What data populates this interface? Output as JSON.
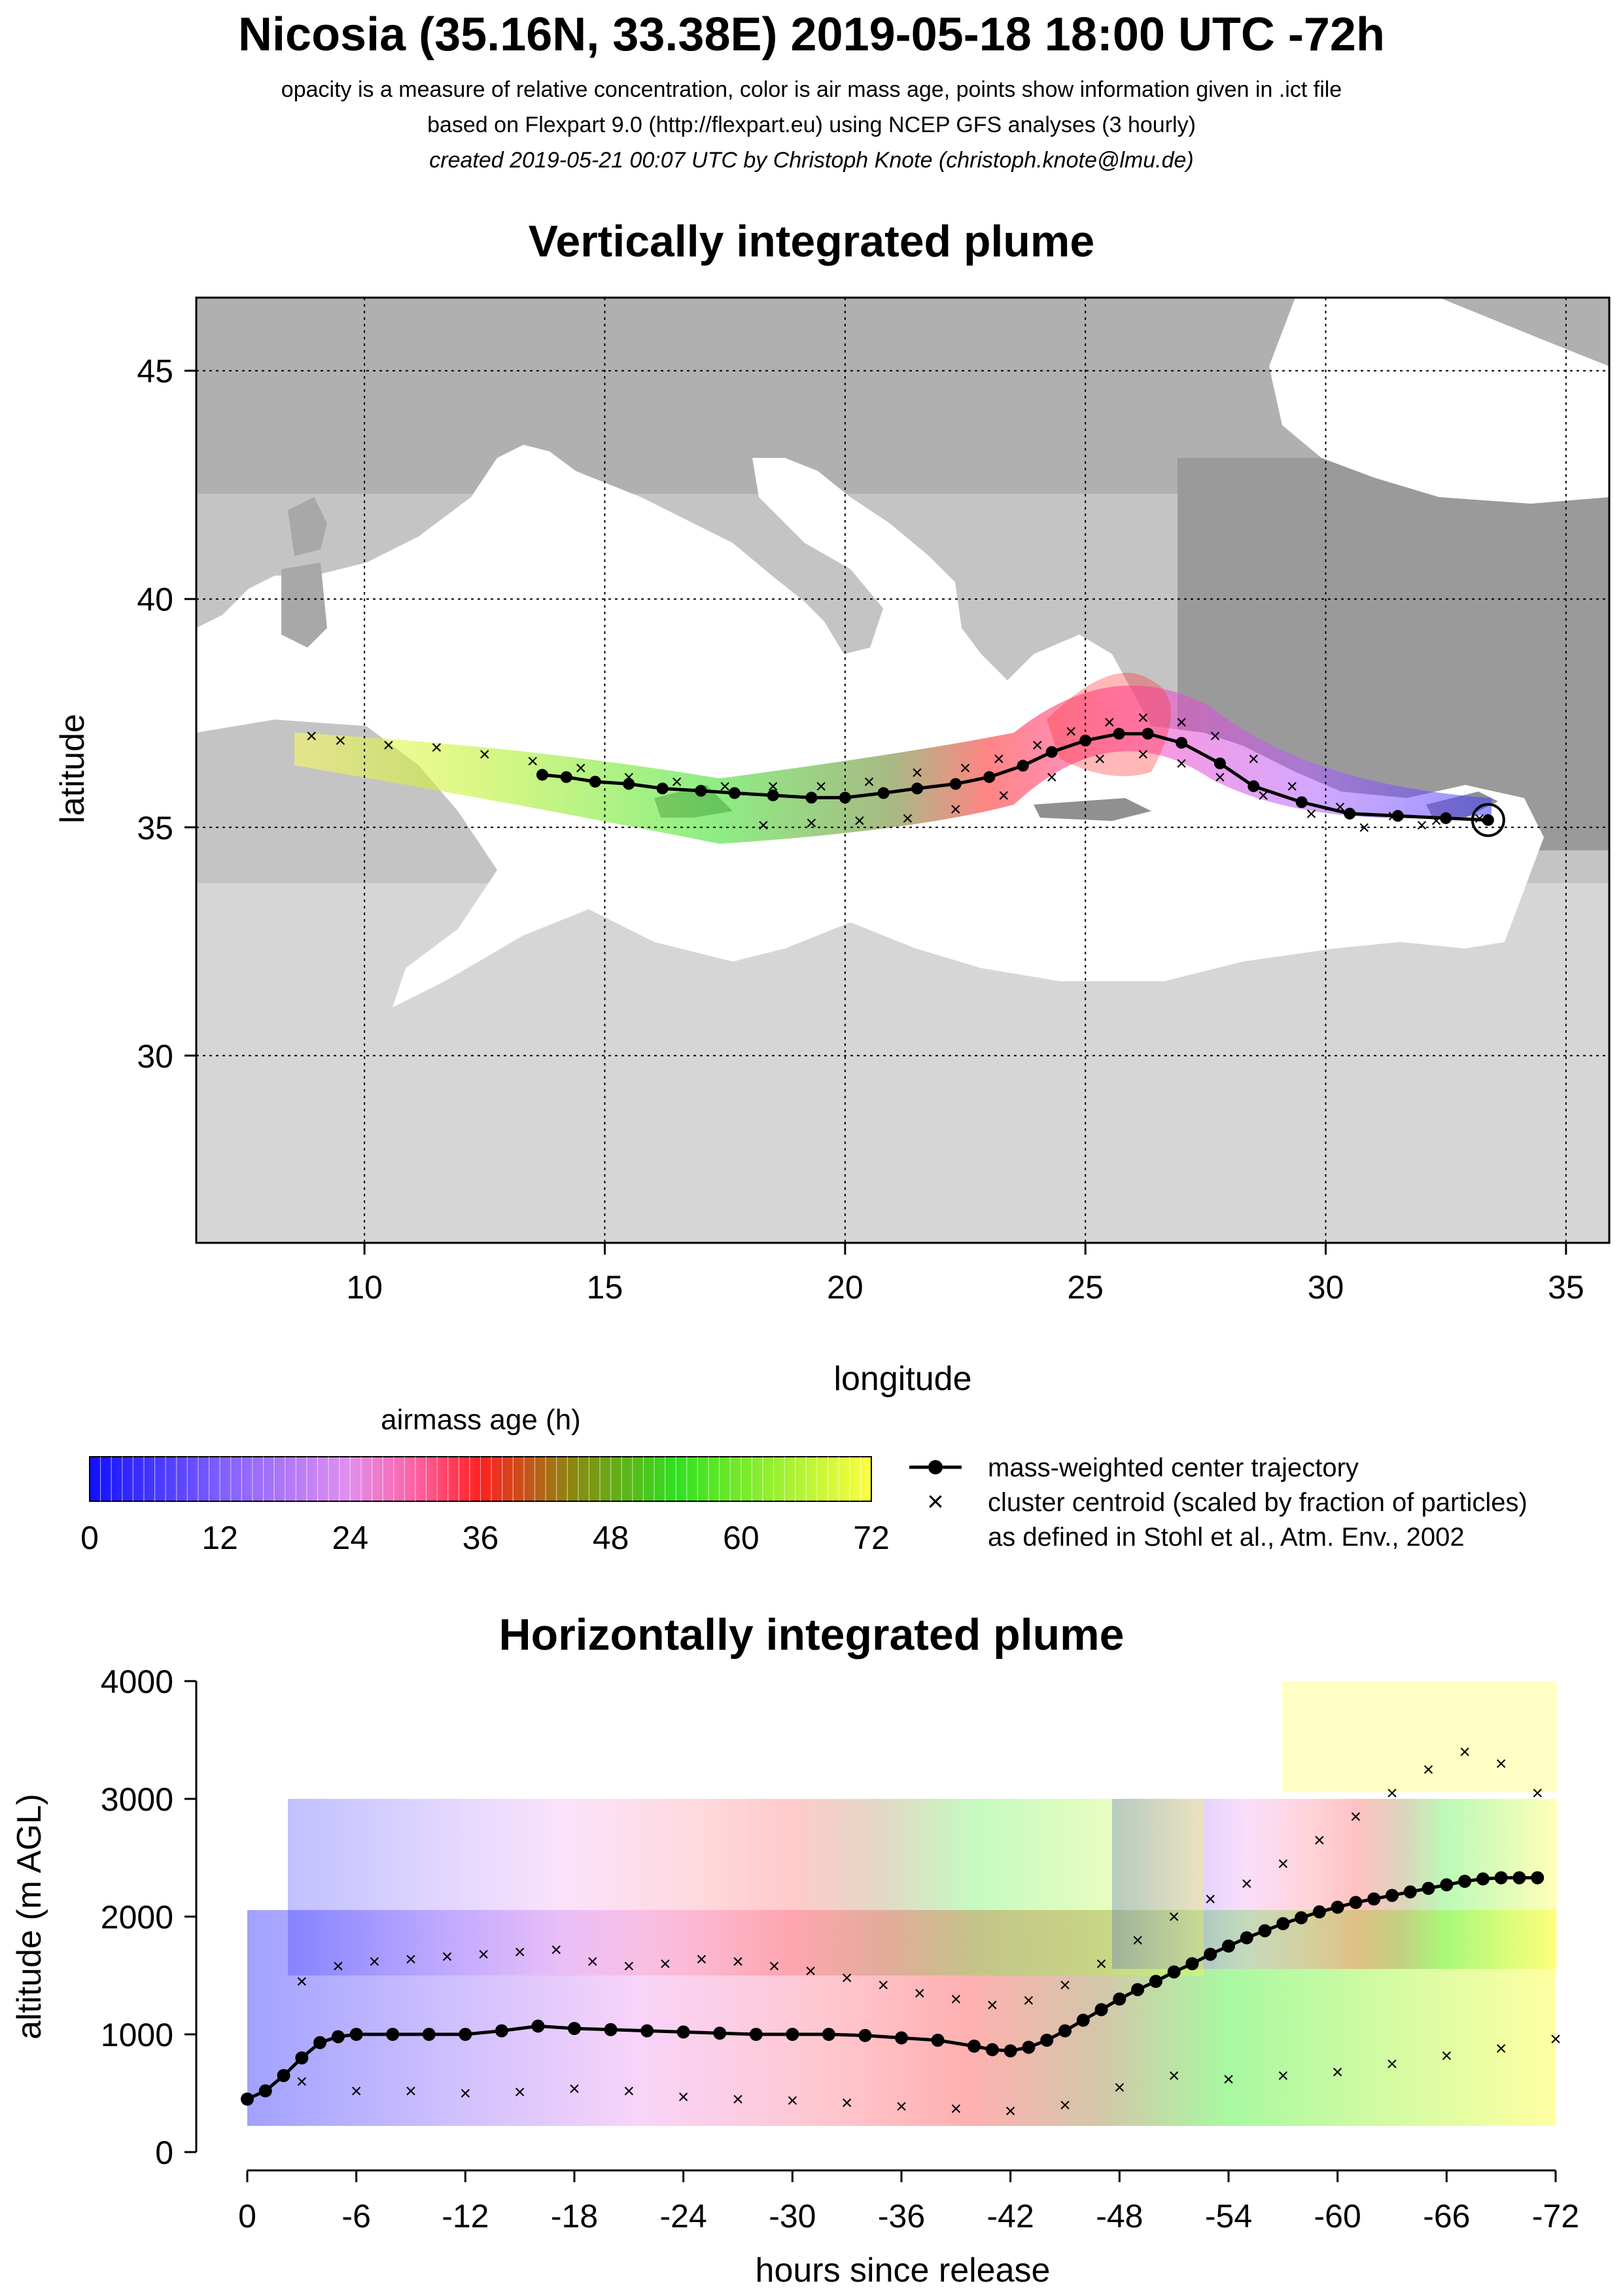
{
  "header": {
    "title": "Nicosia (35.16N, 33.38E) 2019-05-18 18:00 UTC -72h",
    "subtitle1": "opacity is a measure of relative concentration, color is air mass age, points show information given in .ict file",
    "subtitle2": "based on Flexpart 9.0 (http://flexpart.eu) using NCEP GFS analyses (3 hourly)",
    "subtitle3": "created 2019-05-21 00:07 UTC by Christoph Knote (christoph.knote@lmu.de)"
  },
  "colors": {
    "plot_bg_gray": "#c8c8c8",
    "sea": "#ffffff",
    "trajectory": "#000000"
  },
  "chart_data": [
    {
      "type": "scatter",
      "title": "Vertically integrated plume",
      "xlabel": "longitude",
      "ylabel": "latitude",
      "xlim": [
        6.5,
        35.9
      ],
      "ylim": [
        25.9,
        46.6
      ],
      "xticks": [
        10,
        15,
        20,
        25,
        30,
        35
      ],
      "yticks": [
        30,
        35,
        40,
        45
      ],
      "grid": true,
      "release_point": {
        "lon": 33.38,
        "lat": 35.16
      },
      "series": [
        {
          "name": "mass-weighted center trajectory",
          "x": [
            33.38,
            32.5,
            31.5,
            30.5,
            29.5,
            28.5,
            27.8,
            27.0,
            26.3,
            25.7,
            25.0,
            24.3,
            23.7,
            23.0,
            22.3,
            21.5,
            20.8,
            20.0,
            19.3,
            18.5,
            17.7,
            17.0,
            16.2,
            15.5,
            14.8,
            14.2,
            13.7
          ],
          "y": [
            35.16,
            35.2,
            35.25,
            35.3,
            35.55,
            35.9,
            36.4,
            36.85,
            37.05,
            37.05,
            36.9,
            36.65,
            36.35,
            36.1,
            35.95,
            35.85,
            35.75,
            35.65,
            35.65,
            35.7,
            35.75,
            35.8,
            35.85,
            35.95,
            36.0,
            36.1,
            36.15
          ]
        },
        {
          "name": "cluster centroid (scaled by fraction of particles)",
          "x": [
            33.2,
            32.3,
            31.4,
            30.3,
            29.3,
            28.5,
            27.7,
            27.0,
            26.2,
            25.5,
            24.7,
            24.0,
            23.2,
            22.5,
            21.5,
            20.5,
            19.5,
            18.5,
            17.5,
            16.5,
            15.5,
            14.5,
            13.5,
            12.5,
            11.5,
            10.5,
            9.5,
            8.9,
            32.0,
            30.8,
            29.7,
            28.7,
            27.8,
            27.0,
            26.2,
            25.3,
            24.3,
            23.3,
            22.3,
            21.3,
            20.3,
            19.3,
            18.3
          ],
          "y": [
            35.2,
            35.15,
            35.25,
            35.45,
            35.9,
            36.5,
            37.0,
            37.3,
            37.4,
            37.3,
            37.1,
            36.8,
            36.5,
            36.3,
            36.2,
            36.0,
            35.9,
            35.9,
            35.9,
            36.0,
            36.1,
            36.3,
            36.45,
            36.6,
            36.75,
            36.8,
            36.9,
            37.0,
            35.05,
            35.0,
            35.3,
            35.7,
            36.1,
            36.4,
            36.6,
            36.5,
            36.1,
            35.7,
            35.4,
            35.2,
            35.15,
            35.1,
            35.05
          ]
        }
      ]
    },
    {
      "type": "heatmap",
      "title": "airmass age (h)",
      "categories": [
        "0",
        "12",
        "24",
        "36",
        "48",
        "60",
        "72"
      ],
      "values": [
        0,
        12,
        24,
        36,
        48,
        60,
        72
      ],
      "colors": [
        "#1010ff",
        "#8060ff",
        "#e090f0",
        "#ff60a0",
        "#ff2020",
        "#30e020",
        "#ffff40"
      ]
    },
    {
      "type": "scatter",
      "title": "Horizontally integrated plume",
      "xlabel": "hours since release",
      "ylabel": "altitude (m AGL)",
      "xlim": [
        0,
        -72
      ],
      "ylim": [
        0,
        4000
      ],
      "xticks": [
        "0",
        "-6",
        "-12",
        "-18",
        "-24",
        "-30",
        "-36",
        "-42",
        "-48",
        "-54",
        "-60",
        "-66",
        "-72"
      ],
      "yticks": [
        "0",
        "1000",
        "2000",
        "3000",
        "4000"
      ],
      "grid": false,
      "series": [
        {
          "name": "mass-weighted center trajectory",
          "x": [
            0,
            -1,
            -2,
            -3,
            -4,
            -5,
            -6,
            -8,
            -10,
            -12,
            -14,
            -16,
            -18,
            -20,
            -22,
            -24,
            -26,
            -28,
            -30,
            -32,
            -34,
            -36,
            -38,
            -40,
            -41,
            -42,
            -43,
            -44,
            -45,
            -46,
            -47,
            -48,
            -49,
            -50,
            -51,
            -52,
            -53,
            -54,
            -55,
            -56,
            -57,
            -58,
            -59,
            -60,
            -61,
            -62,
            -63,
            -64,
            -65,
            -66,
            -67,
            -68,
            -69,
            -70,
            -71
          ],
          "y": [
            450,
            520,
            650,
            800,
            930,
            980,
            1000,
            1000,
            1000,
            1000,
            1030,
            1070,
            1050,
            1040,
            1030,
            1020,
            1010,
            1000,
            1000,
            1000,
            990,
            970,
            950,
            900,
            870,
            860,
            890,
            950,
            1030,
            1120,
            1210,
            1300,
            1380,
            1450,
            1530,
            1600,
            1680,
            1750,
            1820,
            1880,
            1940,
            1990,
            2040,
            2080,
            2120,
            2150,
            2180,
            2210,
            2240,
            2270,
            2300,
            2320,
            2330,
            2330,
            2330
          ]
        },
        {
          "name": "cluster centroid (scaled by fraction of particles)",
          "x": [
            -3,
            -5,
            -7,
            -9,
            -11,
            -13,
            -15,
            -17,
            -19,
            -21,
            -23,
            -25,
            -27,
            -29,
            -31,
            -33,
            -35,
            -37,
            -39,
            -41,
            -43,
            -45,
            -47,
            -49,
            -51,
            -53,
            -55,
            -57,
            -59,
            -61,
            -63,
            -65,
            -67,
            -69,
            -71,
            -3,
            -6,
            -9,
            -12,
            -15,
            -18,
            -21,
            -24,
            -27,
            -30,
            -33,
            -36,
            -39,
            -42,
            -45,
            -48,
            -51,
            -54,
            -57,
            -60,
            -63,
            -66,
            -69,
            -72
          ],
          "y": [
            1450,
            1580,
            1620,
            1640,
            1660,
            1680,
            1700,
            1720,
            1620,
            1580,
            1600,
            1640,
            1620,
            1580,
            1540,
            1480,
            1420,
            1350,
            1300,
            1250,
            1290,
            1420,
            1600,
            1800,
            2000,
            2150,
            2280,
            2450,
            2650,
            2850,
            3050,
            3250,
            3400,
            3300,
            3050,
            600,
            520,
            520,
            500,
            510,
            540,
            520,
            470,
            450,
            440,
            420,
            390,
            370,
            350,
            400,
            550,
            650,
            620,
            650,
            680,
            750,
            820,
            880,
            960
          ]
        }
      ]
    }
  ],
  "legend": {
    "items": [
      {
        "label": "mass-weighted center trajectory"
      },
      {
        "label": "cluster centroid (scaled by fraction of particles)"
      },
      {
        "label": "as defined in Stohl et al., Atm. Env., 2002"
      }
    ]
  }
}
